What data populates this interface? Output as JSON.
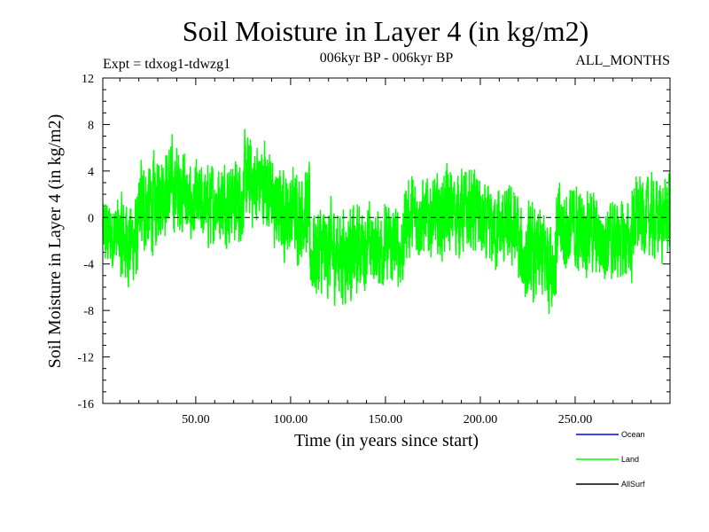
{
  "chart_data": {
    "type": "line",
    "title": "Soil Moisture in Layer 4 (in kg/m2)",
    "subtitle_left": "Expt = tdxog1-tdwzg1",
    "subtitle_center": "006kyr BP - 006kyr BP",
    "subtitle_right": "ALL_MONTHS",
    "xlabel": "Time (in years since start)",
    "ylabel": "Soil Moisture in Layer 4 (in kg/m2)",
    "xlim": [
      1,
      300
    ],
    "ylim": [
      -16,
      12
    ],
    "xticks": [
      50,
      100,
      150,
      200,
      250
    ],
    "xtick_labels": [
      "50.00",
      "100.00",
      "150.00",
      "200.00",
      "250.00"
    ],
    "yticks": [
      -16,
      -12,
      -8,
      -4,
      0,
      4,
      8,
      12
    ],
    "ytick_labels": [
      "-16",
      "-12",
      "-8",
      "-4",
      "0",
      "4",
      "8",
      "12"
    ],
    "reference_line": 0,
    "series": [
      {
        "name": "Ocean",
        "color": "#0000ff",
        "values": []
      },
      {
        "name": "Land",
        "color": "#00ff00",
        "values": []
      },
      {
        "name": "AllSurf",
        "color": "#000000",
        "values": []
      }
    ],
    "land_envelope": {
      "description_units": "kg/m2 per year segment",
      "segments": [
        {
          "x": [
            1,
            10
          ],
          "mean": -1.5,
          "amp": 4.5
        },
        {
          "x": [
            10,
            20
          ],
          "mean": -2.0,
          "amp": 5.5
        },
        {
          "x": [
            20,
            30
          ],
          "mean": 1.0,
          "amp": 6.0
        },
        {
          "x": [
            30,
            45
          ],
          "mean": 2.5,
          "amp": 5.5
        },
        {
          "x": [
            45,
            60
          ],
          "mean": 1.0,
          "amp": 5.0
        },
        {
          "x": [
            60,
            75
          ],
          "mean": 1.5,
          "amp": 5.0
        },
        {
          "x": [
            75,
            90
          ],
          "mean": 3.0,
          "amp": 5.5
        },
        {
          "x": [
            90,
            110
          ],
          "mean": 0.5,
          "amp": 5.5
        },
        {
          "x": [
            110,
            135
          ],
          "mean": -3.0,
          "amp": 6.0
        },
        {
          "x": [
            135,
            160
          ],
          "mean": -2.5,
          "amp": 5.0
        },
        {
          "x": [
            160,
            180
          ],
          "mean": 0.0,
          "amp": 5.0
        },
        {
          "x": [
            180,
            200
          ],
          "mean": 0.5,
          "amp": 5.5
        },
        {
          "x": [
            200,
            220
          ],
          "mean": -1.0,
          "amp": 5.0
        },
        {
          "x": [
            220,
            240
          ],
          "mean": -3.5,
          "amp": 6.0
        },
        {
          "x": [
            240,
            260
          ],
          "mean": -1.0,
          "amp": 5.5
        },
        {
          "x": [
            260,
            280
          ],
          "mean": -2.0,
          "amp": 5.0
        },
        {
          "x": [
            280,
            300
          ],
          "mean": 0.0,
          "amp": 5.0
        }
      ]
    }
  }
}
